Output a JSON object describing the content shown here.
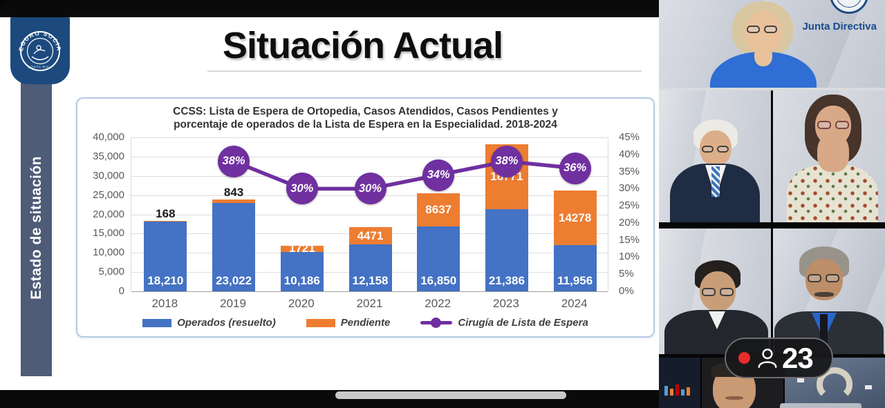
{
  "slide": {
    "top_title": "Situación Actual",
    "sidebar_label": "Estado de situación",
    "badge": {
      "arc_text": "SEGURO SOCIAL",
      "sub_text": "COSTA RICA"
    }
  },
  "chart_data": {
    "type": "bar",
    "subtype": "stacked-bars-with-percent-line",
    "title_line1": "CCSS: Lista de Espera de Ortopedia, Casos Atendidos, Casos Pendientes y",
    "title_line2": "porcentaje de operados de la Lista de Espera en la Especialidad. 2018-2024",
    "categories": [
      "2018",
      "2019",
      "2020",
      "2021",
      "2022",
      "2023",
      "2024"
    ],
    "series": [
      {
        "name": "Operados (resuelto)",
        "type": "bar-stack-bottom",
        "color": "#4472c4",
        "values": [
          18210,
          23022,
          10186,
          12158,
          16850,
          21386,
          11956
        ],
        "labels": [
          "18,210",
          "23,022",
          "10,186",
          "12,158",
          "16,850",
          "21,386",
          "11,956"
        ],
        "label_color": "#ffffff"
      },
      {
        "name": "Pendiente",
        "type": "bar-stack-top",
        "color": "#ed7d31",
        "values": [
          168,
          843,
          1721,
          4471,
          8637,
          16771,
          14278
        ],
        "labels": [
          "168",
          "843",
          "1721",
          "4471",
          "8637",
          "16771",
          "14278"
        ],
        "label_placement": [
          "above-dark",
          "above-dark",
          "inside-light",
          "inside-light",
          "inside-light",
          "inside-light",
          "inside-light"
        ]
      },
      {
        "name": "Cirugía de Lista de Espera",
        "type": "line-percent",
        "color": "#7030a0",
        "values": [
          null,
          38,
          30,
          30,
          34,
          38,
          36
        ],
        "labels": [
          null,
          "38%",
          "30%",
          "30%",
          "34%",
          "38%",
          "36%"
        ]
      }
    ],
    "left_axis": {
      "min": 0,
      "max": 40000,
      "tick_step": 5000,
      "ticks": [
        "0",
        "5,000",
        "10,000",
        "15,000",
        "20,000",
        "25,000",
        "30,000",
        "35,000",
        "40,000"
      ]
    },
    "right_axis": {
      "min": 0,
      "max": 45,
      "tick_step": 5,
      "ticks": [
        "0%",
        "5%",
        "10%",
        "15%",
        "20%",
        "25%",
        "30%",
        "35%",
        "40%",
        "45%"
      ]
    },
    "grid": "horizontal",
    "legend_position": "bottom"
  },
  "meeting": {
    "panel_label": "Junta Directiva",
    "recording_indicator": {
      "participant_count": "23"
    }
  }
}
